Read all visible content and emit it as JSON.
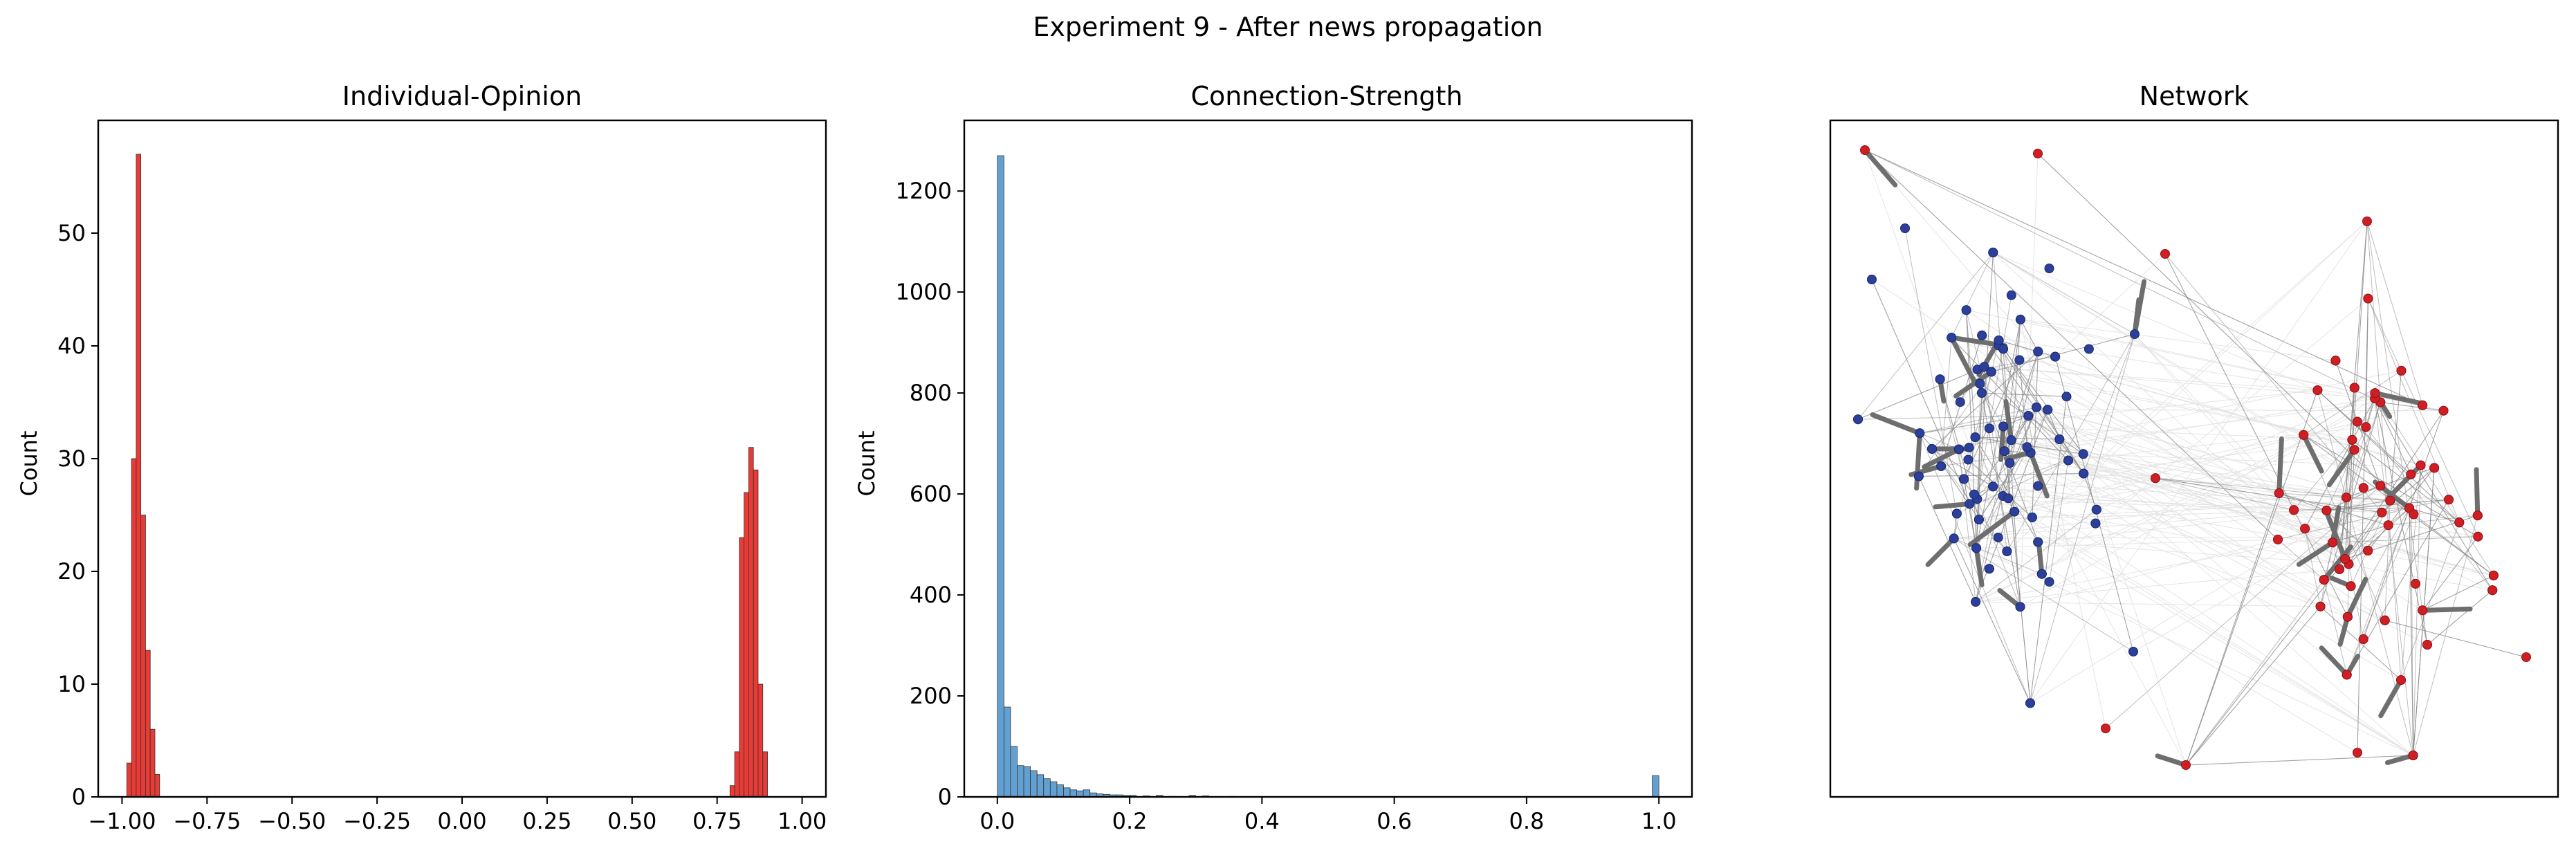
{
  "figure": {
    "title": "Experiment 9 - After news propagation"
  },
  "chart_data": [
    {
      "type": "bar",
      "subtype": "histogram",
      "title": "Individual-Opinion",
      "xlabel": "",
      "ylabel": "Count",
      "xlim": [
        -1.07,
        1.07
      ],
      "ylim": [
        0,
        60
      ],
      "x_ticks": [
        -1.0,
        -0.75,
        -0.5,
        -0.25,
        0.0,
        0.25,
        0.5,
        0.75,
        1.0
      ],
      "x_tick_labels": [
        "−1.00",
        "−0.75",
        "−0.50",
        "−0.25",
        "0.00",
        "0.25",
        "0.50",
        "0.75",
        "1.00"
      ],
      "y_ticks": [
        0,
        10,
        20,
        30,
        40,
        50
      ],
      "y_tick_labels": [
        "0",
        "10",
        "20",
        "30",
        "40",
        "50"
      ],
      "bin_width": 0.0138,
      "bin_starts": [
        -0.986,
        -0.9722,
        -0.9584,
        -0.9446,
        -0.9308,
        -0.917,
        -0.9032,
        0.7878,
        0.8016,
        0.8154,
        0.8292,
        0.843,
        0.8568,
        0.8706,
        0.8844,
        0.8982
      ],
      "counts": [
        3,
        30,
        57,
        25,
        13,
        6,
        2,
        1,
        4,
        23,
        27,
        31,
        29,
        10,
        4,
        0
      ],
      "bar_color": "#e8302a",
      "grid": false
    },
    {
      "type": "bar",
      "subtype": "histogram",
      "title": "Connection-Strength",
      "xlabel": "",
      "ylabel": "Count",
      "xlim": [
        -0.05,
        1.05
      ],
      "ylim": [
        0,
        1340
      ],
      "x_ticks": [
        0.0,
        0.2,
        0.4,
        0.6,
        0.8,
        1.0
      ],
      "x_tick_labels": [
        "0.0",
        "0.2",
        "0.4",
        "0.6",
        "0.8",
        "1.0"
      ],
      "y_ticks": [
        0,
        200,
        400,
        600,
        800,
        1000,
        1200
      ],
      "y_tick_labels": [
        "0",
        "200",
        "400",
        "600",
        "800",
        "1000",
        "1200"
      ],
      "bin_width": 0.01,
      "bin_starts": [
        0.0,
        0.01,
        0.02,
        0.03,
        0.04,
        0.05,
        0.06,
        0.07,
        0.08,
        0.09,
        0.1,
        0.11,
        0.12,
        0.13,
        0.14,
        0.15,
        0.16,
        0.17,
        0.18,
        0.19,
        0.2,
        0.22,
        0.24,
        0.26,
        0.29,
        0.31,
        0.35,
        0.99
      ],
      "counts": [
        1270,
        178,
        100,
        62,
        60,
        52,
        44,
        36,
        30,
        24,
        18,
        14,
        12,
        14,
        8,
        6,
        5,
        4,
        4,
        3,
        3,
        2,
        3,
        1,
        3,
        2,
        1,
        42
      ],
      "bar_color": "#5b9bd0",
      "grid": false
    },
    {
      "type": "network",
      "title": "Network",
      "xlabel": "",
      "ylabel": "",
      "axes_ticks": false,
      "node_colors": [
        "#2b3f9b",
        "#d01f24"
      ],
      "edge_color": "#888888"
    }
  ]
}
